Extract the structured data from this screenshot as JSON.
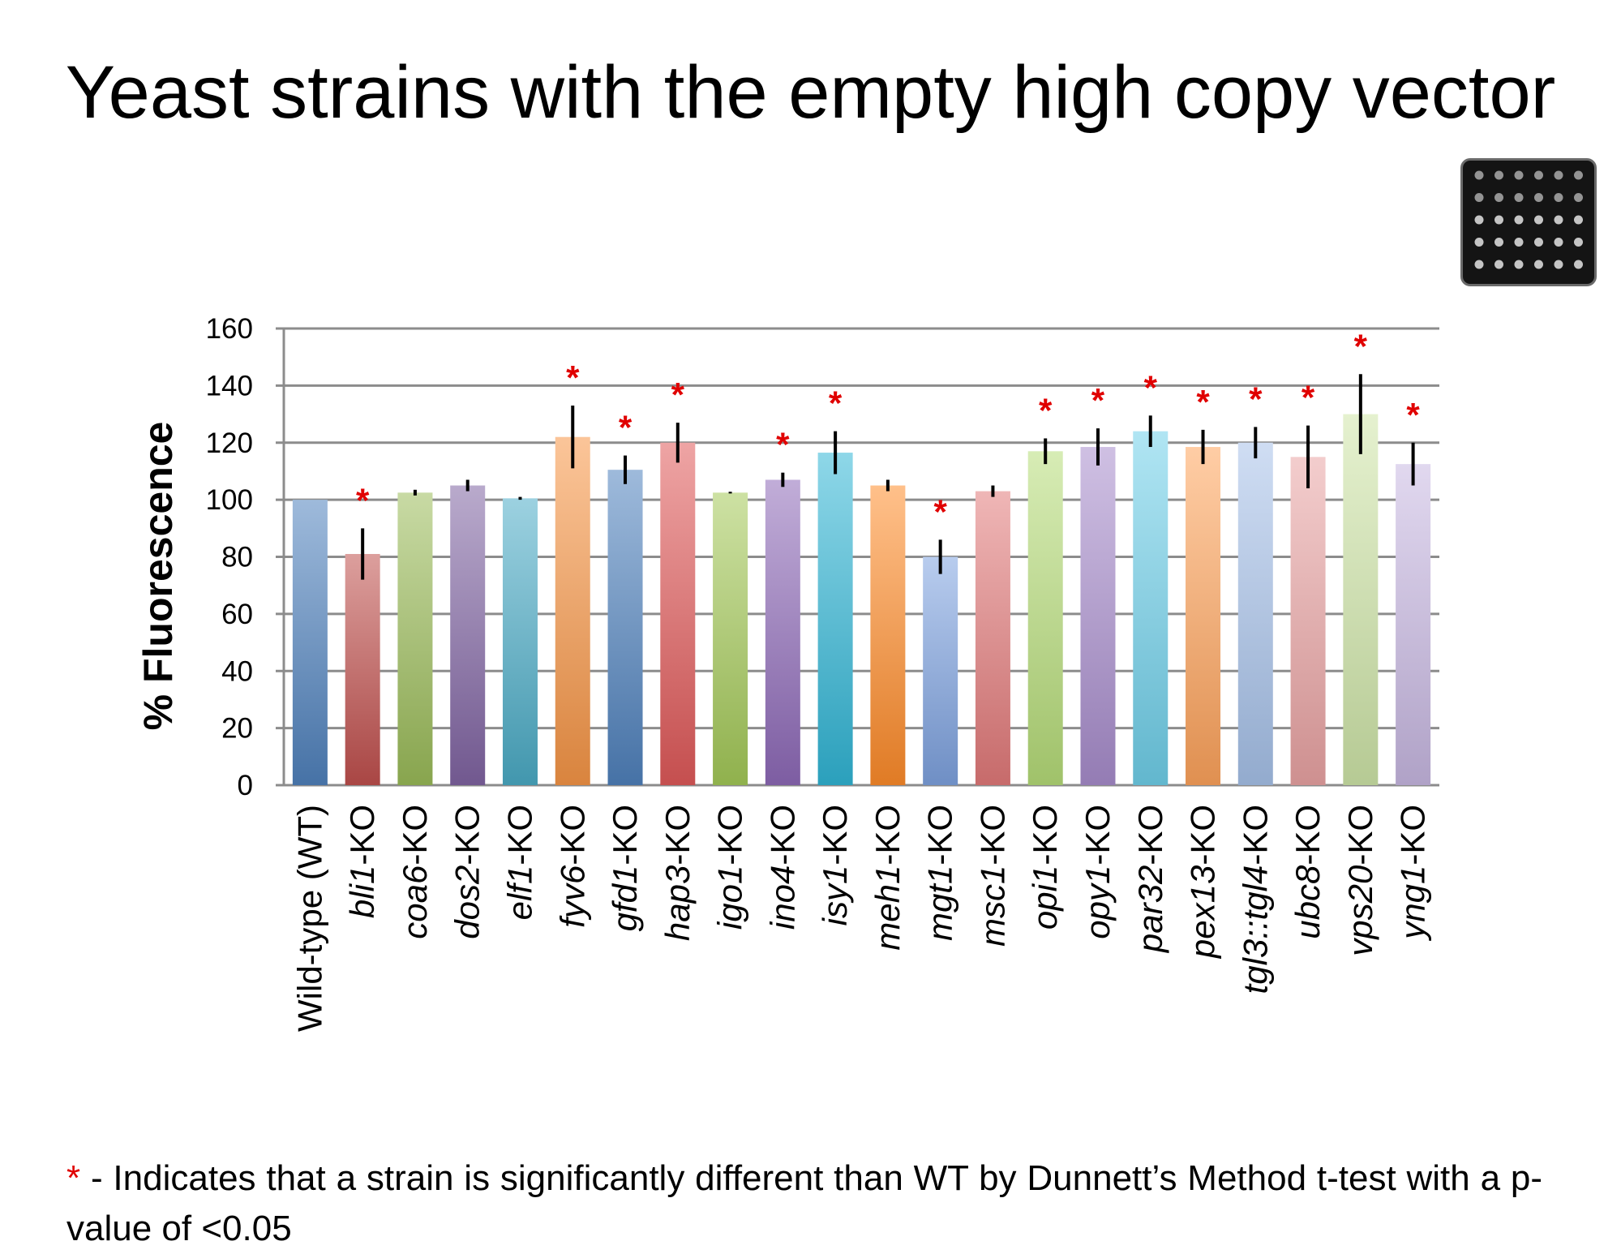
{
  "title": "Yeast strains with the empty high copy vector",
  "chart_data": {
    "type": "bar",
    "ylabel": "% Fluorescence",
    "xlabel": "",
    "ylim": [
      0,
      160
    ],
    "yticks": [
      0,
      20,
      40,
      60,
      80,
      100,
      120,
      140,
      160
    ],
    "grid": true,
    "categories": [
      {
        "name": "Wild-type (WT)",
        "italic": "",
        "suffix": "",
        "value": 100,
        "error": 0,
        "significant": false,
        "color": "#4f81bd"
      },
      {
        "name": "bli1-KO",
        "italic": "bli1",
        "suffix": "-KO",
        "value": 81,
        "error": 9,
        "significant": true,
        "color": "#c0504d"
      },
      {
        "name": "coa6-KO",
        "italic": "coa6",
        "suffix": "-KO",
        "value": 102.5,
        "error": 1,
        "significant": false,
        "color": "#9bbb59"
      },
      {
        "name": "dos2-KO",
        "italic": "dos2",
        "suffix": "-KO",
        "value": 105,
        "error": 2,
        "significant": false,
        "color": "#8064a2"
      },
      {
        "name": "elf1-KO",
        "italic": "elf1",
        "suffix": "-KO",
        "value": 100.5,
        "error": 0.5,
        "significant": false,
        "color": "#4bacc6"
      },
      {
        "name": "fyv6-KO",
        "italic": "fyv6",
        "suffix": "-KO",
        "value": 122,
        "error": 11,
        "significant": true,
        "color": "#f79646"
      },
      {
        "name": "gfd1-KO",
        "italic": "gfd1",
        "suffix": "-KO",
        "value": 110.5,
        "error": 5,
        "significant": true,
        "color": "#4f81bd"
      },
      {
        "name": "hap3-KO",
        "italic": "hap3",
        "suffix": "-KO",
        "value": 120,
        "error": 7,
        "significant": true,
        "color": "#e05a5a"
      },
      {
        "name": "igo1-KO",
        "italic": "igo1",
        "suffix": "-KO",
        "value": 102.5,
        "error": 0.3,
        "significant": false,
        "color": "#a4c957"
      },
      {
        "name": "ino4-KO",
        "italic": "ino4",
        "suffix": "-KO",
        "value": 107,
        "error": 2.5,
        "significant": true,
        "color": "#8e6ab8"
      },
      {
        "name": "isy1-KO",
        "italic": "isy1",
        "suffix": "-KO",
        "value": 116.5,
        "error": 7.5,
        "significant": true,
        "color": "#31b6d6"
      },
      {
        "name": "meh1-KO",
        "italic": "meh1",
        "suffix": "-KO",
        "value": 105,
        "error": 2,
        "significant": false,
        "color": "#ff8c2a"
      },
      {
        "name": "mgt1-KO",
        "italic": "mgt1",
        "suffix": "-KO",
        "value": 80,
        "error": 6,
        "significant": true,
        "color": "#7ea3e0"
      },
      {
        "name": "msc1-KO",
        "italic": "msc1",
        "suffix": "-KO",
        "value": 103,
        "error": 2,
        "significant": false,
        "color": "#e27a7a"
      },
      {
        "name": "opi1-KO",
        "italic": "opi1",
        "suffix": "-KO",
        "value": 117,
        "error": 4.5,
        "significant": true,
        "color": "#b6dc78"
      },
      {
        "name": "opy1-KO",
        "italic": "opy1",
        "suffix": "-KO",
        "value": 118.5,
        "error": 6.5,
        "significant": true,
        "color": "#a88dcc"
      },
      {
        "name": "par32-KO",
        "italic": "par32",
        "suffix": "-KO",
        "value": 124,
        "error": 5.5,
        "significant": true,
        "color": "#6fd0ea"
      },
      {
        "name": "pex13-KO",
        "italic": "pex13",
        "suffix": "-KO",
        "value": 118.5,
        "error": 6,
        "significant": true,
        "color": "#ffa45c"
      },
      {
        "name": "tgl3::tgl4-KO",
        "italic": "tgl3::tgl4",
        "suffix": "-KO",
        "value": 120,
        "error": 5.5,
        "significant": true,
        "color": "#a7c2ea"
      },
      {
        "name": "ubc8-KO",
        "italic": "ubc8",
        "suffix": "-KO",
        "value": 115,
        "error": 11,
        "significant": true,
        "color": "#eaa4a4"
      },
      {
        "name": "vps20-KO",
        "italic": "vps20",
        "suffix": "-KO",
        "value": 130,
        "error": 14,
        "significant": true,
        "color": "#cfe6a8"
      },
      {
        "name": "yng1-KO",
        "italic": "yng1",
        "suffix": "-KO",
        "value": 112.5,
        "error": 7.5,
        "significant": true,
        "color": "#c8b8e2"
      }
    ],
    "significance_marker": "*",
    "significance_color": "#e00000"
  },
  "plate_image": {
    "rows": 5,
    "cols": 6,
    "background": "#141414",
    "spot_color": "#d8d8d8"
  },
  "footnote": {
    "marker": "*",
    "text": " - Indicates that a strain is significantly different than WT by Dunnett’s Method t-test with a p-value of <0.05"
  }
}
